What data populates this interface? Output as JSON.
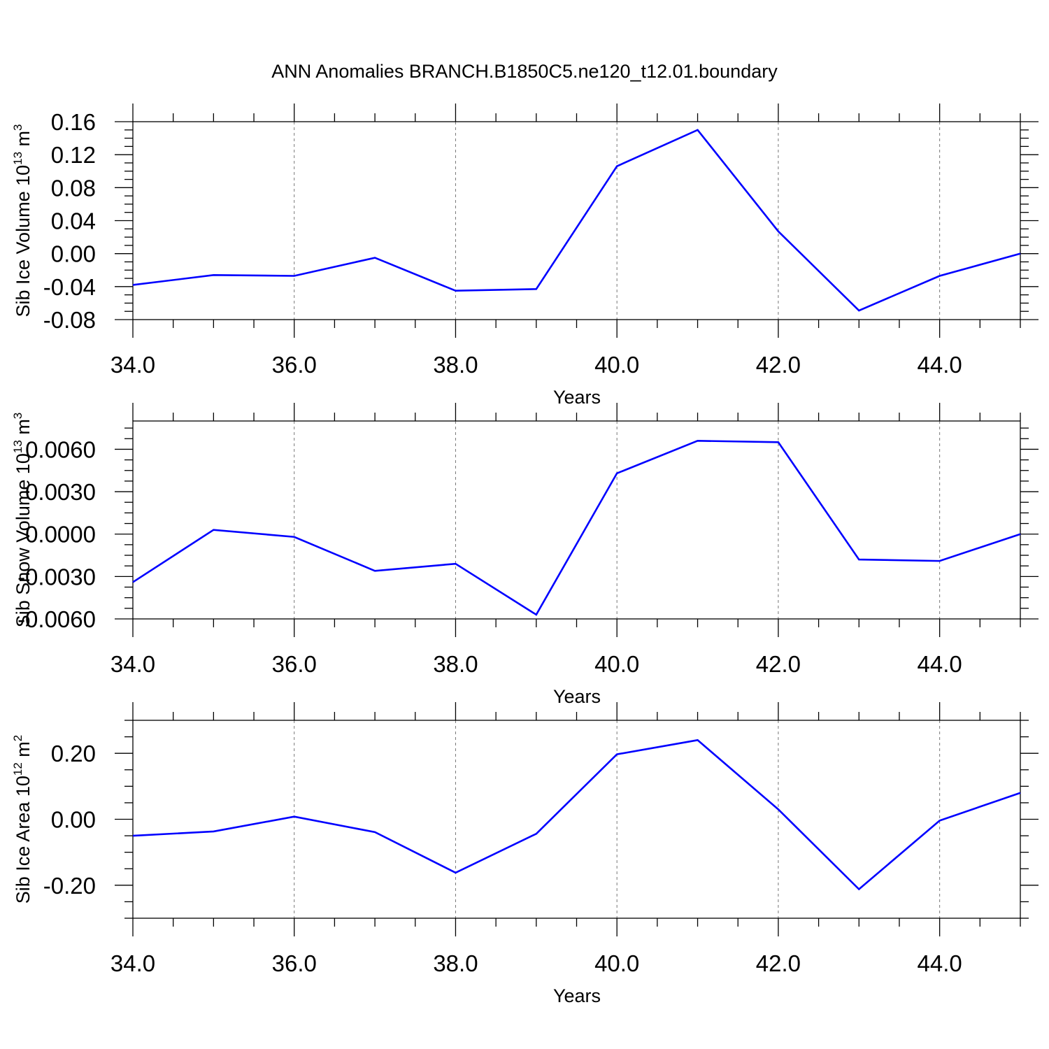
{
  "title": "ANN Anomalies BRANCH.B1850C5.ne120_t12.01.boundary",
  "colors": {
    "line": "#0000ff",
    "axis": "#000000",
    "grid": "#777777"
  },
  "chart_data": [
    {
      "type": "line",
      "xlabel": "Years",
      "ylabel": {
        "text": "Sib Ice Volume 10",
        "sup1": "13",
        "unit": " m",
        "sup2": "3"
      },
      "xlim": [
        34,
        45
      ],
      "ylim": [
        -0.08,
        0.16
      ],
      "xticks": [
        "34.0",
        "36.0",
        "38.0",
        "40.0",
        "42.0",
        "44.0"
      ],
      "yticks": [
        "-0.08",
        "-0.04",
        "0.00",
        "0.04",
        "0.08",
        "0.12",
        "0.16"
      ],
      "x": [
        34,
        35,
        36,
        37,
        38,
        39,
        40,
        41,
        42,
        43,
        44,
        45
      ],
      "series": [
        {
          "values": [
            -0.038,
            -0.026,
            -0.027,
            -0.005,
            -0.045,
            -0.043,
            0.106,
            0.15,
            0.027,
            -0.069,
            -0.027,
            0.0
          ]
        }
      ],
      "grid": "vertical dashed at labeled x ticks"
    },
    {
      "type": "line",
      "xlabel": "Years",
      "ylabel": {
        "text": "Sib Snow Volume 10",
        "sup1": "13",
        "unit": " m",
        "sup2": "3"
      },
      "xlim": [
        34,
        45
      ],
      "ylim": [
        -0.006,
        0.008
      ],
      "xticks": [
        "34.0",
        "36.0",
        "38.0",
        "40.0",
        "42.0",
        "44.0"
      ],
      "yticks": [
        "-0.0060",
        "-0.0030",
        "0.0000",
        "0.0030",
        "0.0060"
      ],
      "x": [
        34,
        35,
        36,
        37,
        38,
        39,
        40,
        41,
        42,
        43,
        44,
        45
      ],
      "series": [
        {
          "values": [
            -0.0034,
            0.0003,
            -0.0002,
            -0.0026,
            -0.0021,
            -0.0057,
            0.0043,
            0.0066,
            0.0065,
            -0.0018,
            -0.0019,
            0.0
          ]
        }
      ],
      "grid": "vertical dashed at labeled x ticks"
    },
    {
      "type": "line",
      "xlabel": "Years",
      "ylabel": {
        "text": "Sib Ice Area 10",
        "sup1": "12",
        "unit": " m",
        "sup2": "2"
      },
      "xlim": [
        34,
        45
      ],
      "ylim": [
        -0.3,
        0.3
      ],
      "xticks": [
        "34.0",
        "36.0",
        "38.0",
        "40.0",
        "42.0",
        "44.0"
      ],
      "yticks": [
        "-0.20",
        "0.00",
        "0.20"
      ],
      "x": [
        34,
        35,
        36,
        37,
        38,
        39,
        40,
        41,
        42,
        43,
        44,
        45
      ],
      "series": [
        {
          "values": [
            -0.05,
            -0.037,
            0.008,
            -0.039,
            -0.162,
            -0.044,
            0.197,
            0.24,
            0.03,
            -0.212,
            -0.004,
            0.08
          ]
        }
      ],
      "grid": "vertical dashed at labeled x ticks"
    }
  ]
}
